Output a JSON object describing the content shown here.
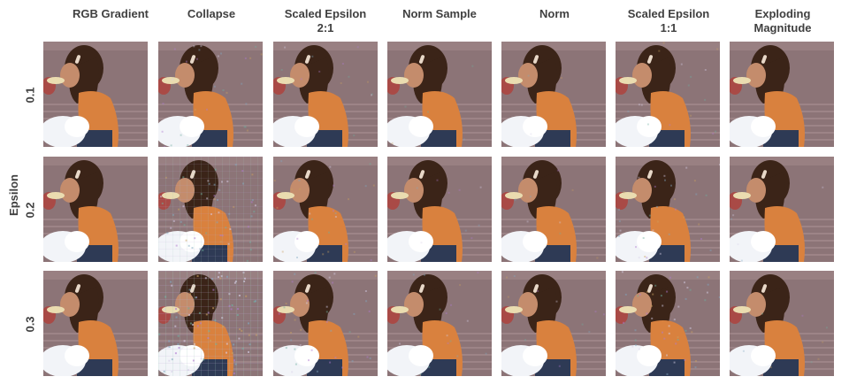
{
  "figure": {
    "columns": [
      {
        "id": "rgb-gradient",
        "label": "RGB Gradient",
        "noise": 0.0
      },
      {
        "id": "collapse",
        "label": "Collapse",
        "noise": 0.55
      },
      {
        "id": "scaled-epsilon-2-1",
        "label": "Scaled Epsilon\n2:1",
        "noise": 0.25
      },
      {
        "id": "norm-sample",
        "label": "Norm Sample",
        "noise": 0.1
      },
      {
        "id": "norm",
        "label": "Norm",
        "noise": 0.08
      },
      {
        "id": "scaled-epsilon-1-1",
        "label": "Scaled Epsilon\n1:1",
        "noise": 0.3
      },
      {
        "id": "exploding-magnitude",
        "label": "Exploding\nMagnitude",
        "noise": 0.05
      }
    ],
    "rows": [
      {
        "id": "eps-0-1",
        "label": "0.1",
        "epsilon": 0.1
      },
      {
        "id": "eps-0-2",
        "label": "0.2",
        "epsilon": 0.2
      },
      {
        "id": "eps-0-3",
        "label": "0.3",
        "epsilon": 0.3
      }
    ],
    "row_axis_label": "Epsilon",
    "colors": {
      "background_wall": "#8c7477",
      "ground_stripe": "#a89092",
      "girl_shirt": "#d9813e",
      "hair": "#3b2418",
      "skin": "#c48c6c",
      "white_bag": "#f2f4f8",
      "pants": "#2e3a55"
    }
  }
}
